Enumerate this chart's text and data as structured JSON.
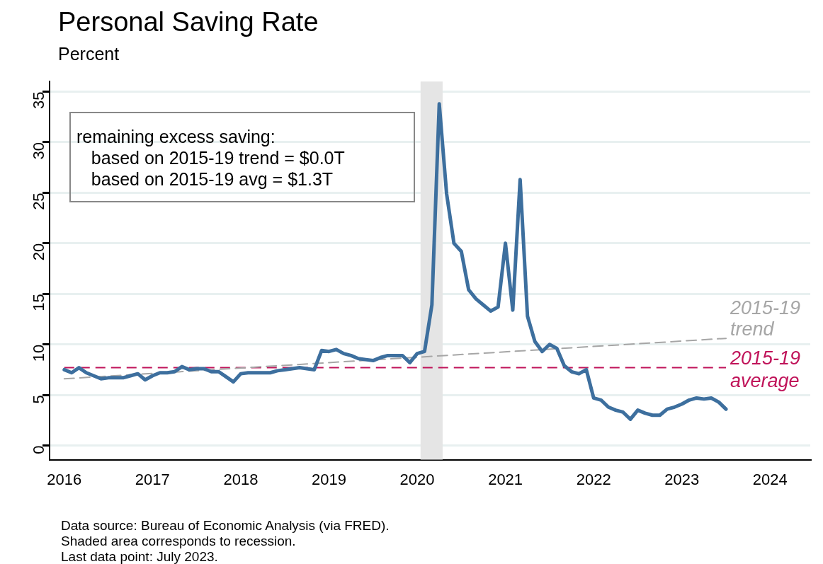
{
  "chart_data": {
    "type": "line",
    "title": "Personal Saving Rate",
    "ylabel": "Percent",
    "x": [
      "2016-01",
      "2016-02",
      "2016-03",
      "2016-04",
      "2016-05",
      "2016-06",
      "2016-07",
      "2016-08",
      "2016-09",
      "2016-10",
      "2016-11",
      "2016-12",
      "2017-01",
      "2017-02",
      "2017-03",
      "2017-04",
      "2017-05",
      "2017-06",
      "2017-07",
      "2017-08",
      "2017-09",
      "2017-10",
      "2017-11",
      "2017-12",
      "2018-01",
      "2018-02",
      "2018-03",
      "2018-04",
      "2018-05",
      "2018-06",
      "2018-07",
      "2018-08",
      "2018-09",
      "2018-10",
      "2018-11",
      "2018-12",
      "2019-01",
      "2019-02",
      "2019-03",
      "2019-04",
      "2019-05",
      "2019-06",
      "2019-07",
      "2019-08",
      "2019-09",
      "2019-10",
      "2019-11",
      "2019-12",
      "2020-01",
      "2020-02",
      "2020-03",
      "2020-04",
      "2020-05",
      "2020-06",
      "2020-07",
      "2020-08",
      "2020-09",
      "2020-10",
      "2020-11",
      "2020-12",
      "2021-01",
      "2021-02",
      "2021-03",
      "2021-04",
      "2021-05",
      "2021-06",
      "2021-07",
      "2021-08",
      "2021-09",
      "2021-10",
      "2021-11",
      "2021-12",
      "2022-01",
      "2022-02",
      "2022-03",
      "2022-04",
      "2022-05",
      "2022-06",
      "2022-07",
      "2022-08",
      "2022-09",
      "2022-10",
      "2022-11",
      "2022-12",
      "2023-01",
      "2023-02",
      "2023-03",
      "2023-04",
      "2023-05",
      "2023-06",
      "2023-07"
    ],
    "series": [
      {
        "name": null,
        "color": "#3d6f9e",
        "values": [
          7.5,
          7.2,
          7.7,
          7.2,
          6.9,
          6.6,
          6.7,
          6.7,
          6.7,
          6.9,
          7.1,
          6.5,
          6.9,
          7.2,
          7.2,
          7.3,
          7.8,
          7.5,
          7.6,
          7.6,
          7.3,
          7.3,
          6.8,
          6.3,
          7.1,
          7.2,
          7.2,
          7.2,
          7.2,
          7.4,
          7.5,
          7.6,
          7.7,
          7.6,
          7.5,
          9.4,
          9.3,
          9.5,
          9.1,
          8.9,
          8.6,
          8.5,
          8.4,
          8.7,
          8.9,
          8.9,
          8.9,
          8.2,
          9.1,
          9.3,
          13.9,
          33.8,
          24.9,
          20.0,
          19.2,
          15.4,
          14.5,
          13.9,
          13.3,
          13.7,
          20.0,
          13.4,
          26.3,
          12.8,
          10.3,
          9.3,
          10.0,
          9.6,
          7.9,
          7.3,
          7.1,
          7.5,
          4.7,
          4.5,
          3.8,
          3.5,
          3.3,
          2.6,
          3.5,
          3.2,
          3.0,
          3.0,
          3.6,
          3.8,
          4.1,
          4.5,
          4.7,
          4.6,
          4.7,
          4.3,
          3.6
        ]
      },
      {
        "name": "2015-19 trend",
        "type": "line",
        "color": "#a6a6a6",
        "line_style": "dashed",
        "x": [
          "2016-01",
          "2023-07"
        ],
        "values": [
          6.6,
          10.6
        ]
      }
    ],
    "ref_lines": [
      {
        "axis": "y",
        "value": 7.7,
        "label": "2015-19 average",
        "color": "#c0145a",
        "line_style": "dashed"
      }
    ],
    "bands": [
      {
        "axis": "x",
        "from": "2020-01-15",
        "to": "2020-04-15",
        "color": "#e5e5e5"
      }
    ],
    "xlim": [
      "2015-11",
      "2024-06-15"
    ],
    "xticks": [
      "2016",
      "2017",
      "2018",
      "2019",
      "2020",
      "2021",
      "2022",
      "2023",
      "2024"
    ],
    "ylim": [
      -1.4,
      36
    ],
    "yticks": [
      0,
      5,
      10,
      15,
      20,
      25,
      30,
      35
    ],
    "grid": "y",
    "legend": false,
    "marker": "none",
    "line_style": "solid",
    "annotations": [
      "remaining excess saving:\n   based on 2015-19 trend = $0.0T\n   based on 2015-19 avg = $1.3T",
      "Data source: Bureau of Economic Analysis (via FRED).\nShaded area corresponds to recession.\nLast data point: July 2023."
    ]
  }
}
